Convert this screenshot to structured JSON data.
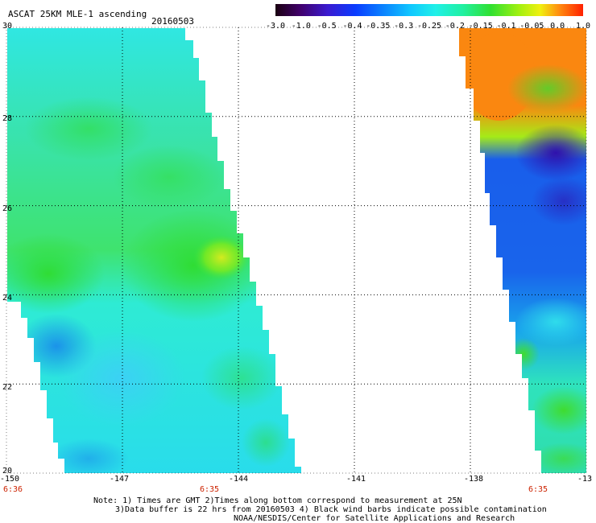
{
  "header": {
    "title": "ASCAT 25KM MLE-1 ascending",
    "date": "20160503"
  },
  "colorbar": {
    "labels": [
      "-3.0",
      "-1.0",
      "-0.5",
      "-0.4",
      "-0.35",
      "-0.3",
      "-0.25",
      "-0.2",
      "-0.15",
      "-0.1",
      "-0.05",
      "0.0",
      "1.0"
    ],
    "colors": [
      "#1a0010",
      "#40006a",
      "#3a1ad0",
      "#0a3cff",
      "#0a82ff",
      "#10c8ff",
      "#20f0e8",
      "#20f0a0",
      "#30e030",
      "#a0f010",
      "#f0f010",
      "#ff9010",
      "#ff2000"
    ]
  },
  "map": {
    "lon_range": [
      -150,
      -135
    ],
    "lat_range": [
      20,
      30
    ],
    "lon_ticks": [
      "-150",
      "-147",
      "-144",
      "-141",
      "-138",
      "-13"
    ],
    "lat_ticks": [
      "30",
      "28",
      "26",
      "24",
      "22",
      "20"
    ],
    "swaths": [
      {
        "name": "west-swath",
        "colors": {
          "base": "#2ff0e6",
          "green": "#3ae85a",
          "yellow": "#c8f020",
          "blue": "#1a8cf0"
        }
      },
      {
        "name": "east-swath",
        "colors": {
          "base": "#1a6af0",
          "orange": "#ff8a10",
          "yellow": "#e8e820",
          "dark": "#3020c8",
          "green": "#40e040"
        }
      }
    ]
  },
  "times": {
    "left": "6:36",
    "mid": "6:35",
    "right": "6:35"
  },
  "footer": {
    "line1": "Note: 1) Times are GMT 2)Times along bottom correspond to measurement at 25N",
    "line2": "3)Data buffer is 22 hrs from 20160503 4) Black wind barbs indicate possible contamination",
    "line3": "NOAA/NESDIS/Center for Satellite Applications and Research"
  }
}
